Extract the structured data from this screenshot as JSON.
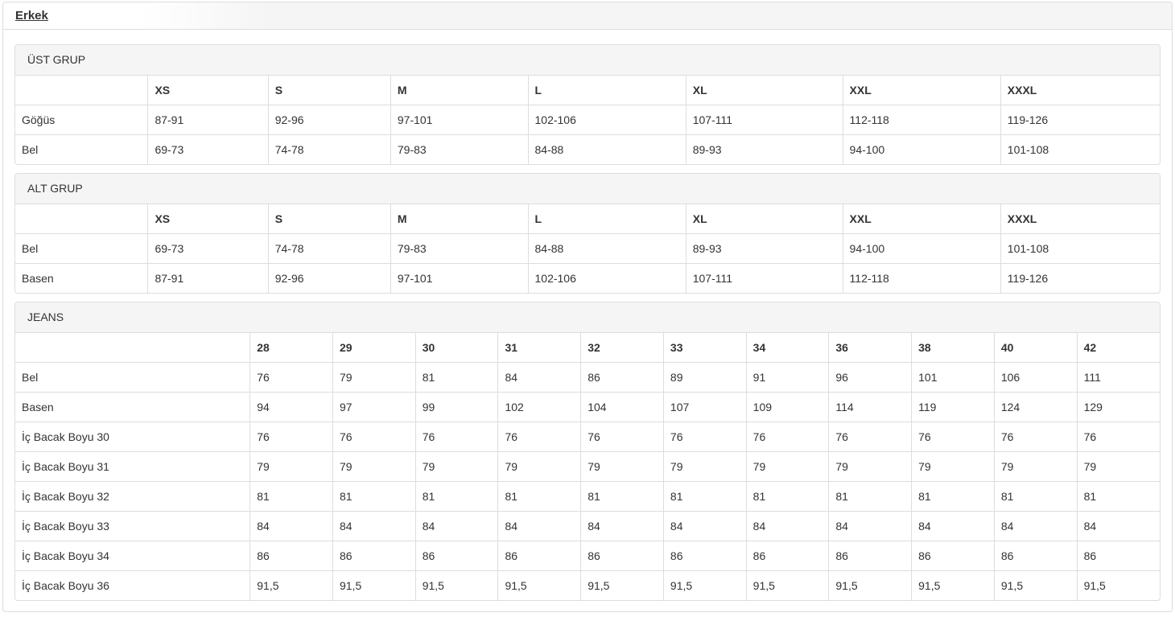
{
  "tabs": [
    {
      "label": "Erkek"
    }
  ],
  "colors": {
    "border": "#dddddd",
    "heading_bg": "#f5f5f5",
    "text": "#333333"
  },
  "panels": [
    {
      "heading": "ÜST GRUP",
      "columns": [
        "",
        "XS",
        "S",
        "M",
        "L",
        "XL",
        "XXL",
        "XXXL"
      ],
      "rows": [
        {
          "label": "Göğüs",
          "values": [
            "87-91",
            "92-96",
            "97-101",
            "102-106",
            "107-111",
            "112-118",
            "119-126"
          ]
        },
        {
          "label": "Bel",
          "values": [
            "69-73",
            "74-78",
            "79-83",
            "84-88",
            "89-93",
            "94-100",
            "101-108"
          ]
        }
      ]
    },
    {
      "heading": "ALT GRUP",
      "columns": [
        "",
        "XS",
        "S",
        "M",
        "L",
        "XL",
        "XXL",
        "XXXL"
      ],
      "rows": [
        {
          "label": "Bel",
          "values": [
            "69-73",
            "74-78",
            "79-83",
            "84-88",
            "89-93",
            "94-100",
            "101-108"
          ]
        },
        {
          "label": "Basen",
          "values": [
            "87-91",
            "92-96",
            "97-101",
            "102-106",
            "107-111",
            "112-118",
            "119-126"
          ]
        }
      ]
    },
    {
      "heading": "JEANS",
      "columns": [
        "",
        "28",
        "29",
        "30",
        "31",
        "32",
        "33",
        "34",
        "36",
        "38",
        "40",
        "42"
      ],
      "rows": [
        {
          "label": "Bel",
          "values": [
            "76",
            "79",
            "81",
            "84",
            "86",
            "89",
            "91",
            "96",
            "101",
            "106",
            "111"
          ]
        },
        {
          "label": "Basen",
          "values": [
            "94",
            "97",
            "99",
            "102",
            "104",
            "107",
            "109",
            "114",
            "119",
            "124",
            "129"
          ]
        },
        {
          "label": "İç Bacak Boyu 30",
          "values": [
            "76",
            "76",
            "76",
            "76",
            "76",
            "76",
            "76",
            "76",
            "76",
            "76",
            "76"
          ]
        },
        {
          "label": "İç Bacak Boyu 31",
          "values": [
            "79",
            "79",
            "79",
            "79",
            "79",
            "79",
            "79",
            "79",
            "79",
            "79",
            "79"
          ]
        },
        {
          "label": "İç Bacak Boyu 32",
          "values": [
            "81",
            "81",
            "81",
            "81",
            "81",
            "81",
            "81",
            "81",
            "81",
            "81",
            "81"
          ]
        },
        {
          "label": "İç Bacak Boyu 33",
          "values": [
            "84",
            "84",
            "84",
            "84",
            "84",
            "84",
            "84",
            "84",
            "84",
            "84",
            "84"
          ]
        },
        {
          "label": "İç Bacak Boyu 34",
          "values": [
            "86",
            "86",
            "86",
            "86",
            "86",
            "86",
            "86",
            "86",
            "86",
            "86",
            "86"
          ]
        },
        {
          "label": "İç Bacak Boyu 36",
          "values": [
            "91,5",
            "91,5",
            "91,5",
            "91,5",
            "91,5",
            "91,5",
            "91,5",
            "91,5",
            "91,5",
            "91,5",
            "91,5"
          ]
        }
      ]
    }
  ]
}
